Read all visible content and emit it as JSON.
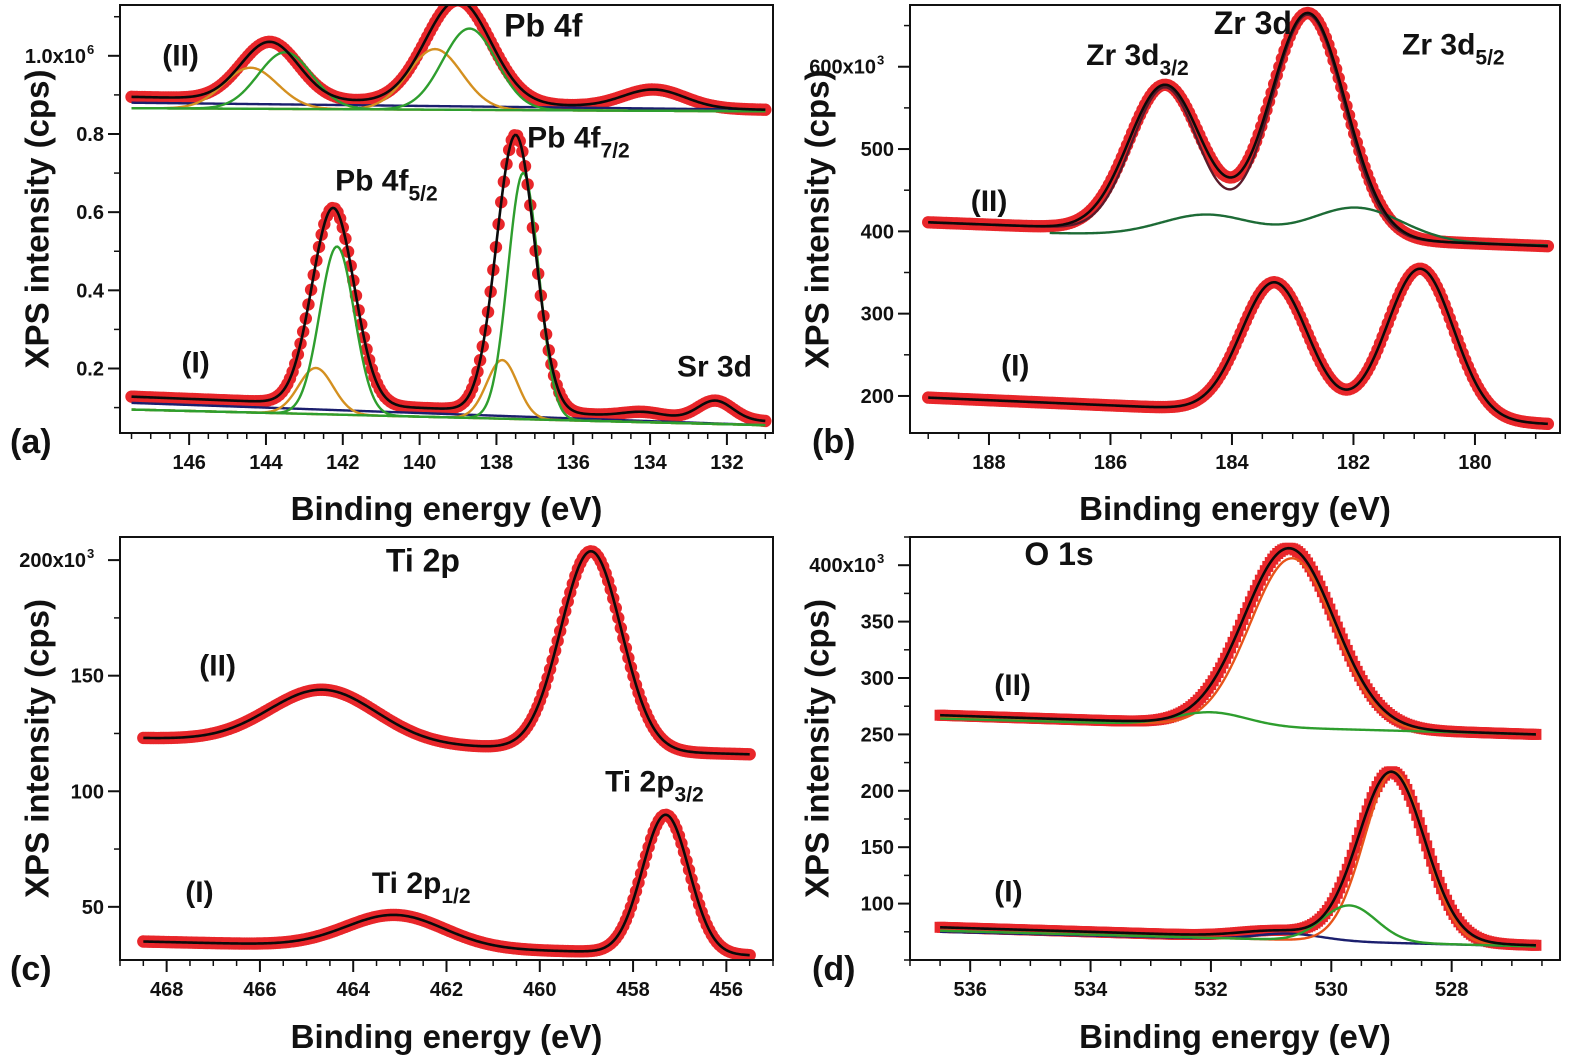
{
  "colors": {
    "data_points": "#e8262a",
    "envelope_fit": "#0a0a0a",
    "background": "#1b1f6e",
    "component_green": "#2e9e2e",
    "component_orange": "#d49020",
    "component_orange_red": "#e8541a",
    "component_darkgreen": "#1d6b36",
    "component_maroon": "#5a1a2a"
  },
  "chart_data": [
    {
      "id": "a",
      "panel_label": "(a)",
      "type": "line",
      "title": "Pb 4f",
      "xlabel": "Binding energy (eV)",
      "ylabel": "XPS intensity (cps)",
      "xlim": [
        147.8,
        130.8
      ],
      "ylim": [
        0.035,
        1.13
      ],
      "x_ticks": [
        146,
        144,
        142,
        140,
        138,
        136,
        134,
        132
      ],
      "x_tick_labels": [
        "146",
        "144",
        "142",
        "140",
        "138",
        "136",
        "134",
        "132"
      ],
      "y_ticks": [
        0.2,
        0.4,
        0.6,
        0.8,
        1.0
      ],
      "y_tick_labels": [
        "0.2",
        "0.4",
        "0.6",
        "0.8",
        "1.0x10"
      ],
      "y_exponent": "6",
      "annotations": [
        {
          "text": "(II)",
          "x": 146.7,
          "y": 0.975
        },
        {
          "text": "(I)",
          "x": 146.2,
          "y": 0.19
        },
        {
          "text": "Pb 4f",
          "sub": "5/2",
          "x": 142.2,
          "y": 0.655
        },
        {
          "text": "Pb 4f",
          "sub": "7/2",
          "x": 137.2,
          "y": 0.765
        },
        {
          "text": "Sr 3d",
          "x": 133.3,
          "y": 0.18
        }
      ],
      "title_pos": {
        "x": 137.8,
        "y": 1.05
      },
      "series": [
        {
          "name": "(II) data",
          "role": "data",
          "baseline": [
            147.5,
            0.895,
            131,
            0.862
          ],
          "peaks": [
            [
              143.9,
              0.148,
              0.75
            ],
            [
              139.0,
              0.264,
              0.85
            ],
            [
              133.9,
              0.046,
              0.8
            ]
          ]
        },
        {
          "name": "(II) fit",
          "role": "fit",
          "baseline": [
            147.5,
            0.895,
            131,
            0.862
          ],
          "peaks": [
            [
              143.9,
              0.148,
              0.75
            ],
            [
              139.0,
              0.264,
              0.85
            ],
            [
              133.9,
              0.046,
              0.8
            ]
          ]
        },
        {
          "name": "(II) orange 1",
          "role": "orange",
          "baseline": [
            147.5,
            0.866,
            131,
            0.858
          ],
          "peaks": [
            [
              144.4,
              0.105,
              0.7
            ]
          ]
        },
        {
          "name": "(II) green 1",
          "role": "green",
          "baseline": [
            147.5,
            0.866,
            131,
            0.858
          ],
          "peaks": [
            [
              143.5,
              0.145,
              0.7
            ]
          ]
        },
        {
          "name": "(II) orange 2",
          "role": "orange",
          "baseline": [
            147.5,
            0.866,
            131,
            0.858
          ],
          "peaks": [
            [
              139.6,
              0.155,
              0.7
            ]
          ]
        },
        {
          "name": "(II) green 2",
          "role": "green",
          "baseline": [
            147.5,
            0.866,
            131,
            0.858
          ],
          "peaks": [
            [
              138.7,
              0.208,
              0.7
            ]
          ]
        },
        {
          "name": "(II) background",
          "role": "background",
          "baseline": [
            147.5,
            0.88,
            131,
            0.862
          ],
          "peaks": []
        },
        {
          "name": "(I) data",
          "role": "data",
          "baseline": [
            147.5,
            0.128,
            131,
            0.065
          ],
          "peaks": [
            [
              142.25,
              0.503,
              0.55
            ],
            [
              137.5,
              0.708,
              0.5
            ],
            [
              134.2,
              0.012,
              0.5
            ],
            [
              132.3,
              0.048,
              0.45
            ]
          ]
        },
        {
          "name": "(I) fit",
          "role": "fit",
          "baseline": [
            147.5,
            0.128,
            131,
            0.065
          ],
          "peaks": [
            [
              142.25,
              0.503,
              0.55
            ],
            [
              137.5,
              0.708,
              0.5
            ],
            [
              134.2,
              0.012,
              0.5
            ],
            [
              132.3,
              0.048,
              0.45
            ]
          ]
        },
        {
          "name": "(I) orange 1",
          "role": "orange",
          "baseline": [
            147.5,
            0.095,
            131,
            0.055
          ],
          "peaks": [
            [
              142.7,
              0.118,
              0.45
            ]
          ]
        },
        {
          "name": "(I) green 1",
          "role": "green",
          "baseline": [
            147.5,
            0.095,
            131,
            0.055
          ],
          "peaks": [
            [
              142.15,
              0.43,
              0.45
            ]
          ]
        },
        {
          "name": "(I) orange 2",
          "role": "orange",
          "baseline": [
            147.5,
            0.095,
            131,
            0.055
          ],
          "peaks": [
            [
              137.85,
              0.15,
              0.4
            ]
          ]
        },
        {
          "name": "(I) green 2",
          "role": "green",
          "baseline": [
            147.5,
            0.095,
            131,
            0.055
          ],
          "peaks": [
            [
              137.3,
              0.63,
              0.4
            ]
          ]
        },
        {
          "name": "(I) background",
          "role": "background",
          "baseline": [
            147.5,
            0.112,
            131,
            0.055
          ],
          "peaks": []
        }
      ]
    },
    {
      "id": "b",
      "panel_label": "(b)",
      "type": "line",
      "title": "Zr 3d",
      "xlabel": "Binding energy (eV)",
      "ylabel": "XPS intensity (cps)",
      "xlim": [
        189.3,
        178.6
      ],
      "ylim": [
        155,
        675
      ],
      "x_ticks": [
        188,
        186,
        184,
        182,
        180
      ],
      "x_tick_labels": [
        "188",
        "186",
        "184",
        "182",
        "180"
      ],
      "y_ticks": [
        200,
        300,
        400,
        500,
        600
      ],
      "y_tick_labels": [
        "200",
        "300",
        "400",
        "500",
        "600x10"
      ],
      "y_exponent": "3",
      "annotations": [
        {
          "text": "(II)",
          "x": 188.3,
          "y": 425
        },
        {
          "text": "(I)",
          "x": 187.8,
          "y": 225
        },
        {
          "text": "Zr 3d",
          "sub": "3/2",
          "x": 186.4,
          "y": 602
        },
        {
          "text": "Zr 3d",
          "sub": "5/2",
          "x": 181.2,
          "y": 615
        }
      ],
      "title_pos": {
        "x": 184.3,
        "y": 640
      },
      "series": [
        {
          "name": "(II) data",
          "role": "data",
          "baseline": [
            189,
            411,
            178.8,
            382
          ],
          "peaks": [
            [
              185.1,
              178,
              0.6
            ],
            [
              182.75,
              272,
              0.62
            ]
          ]
        },
        {
          "name": "(II) fit",
          "role": "fit",
          "baseline": [
            189,
            411,
            178.8,
            382
          ],
          "peaks": [
            [
              185.1,
              178,
              0.6
            ],
            [
              182.75,
              272,
              0.62
            ]
          ]
        },
        {
          "name": "(II) maroon",
          "role": "maroon",
          "baseline": [
            189,
            411,
            178.8,
            382
          ],
          "peaks": [
            [
              185.1,
              175,
              0.55
            ],
            [
              182.75,
              270,
              0.6
            ]
          ]
        },
        {
          "name": "(II) darkgreen",
          "role": "darkgreen",
          "baseline": [
            187,
            398,
            178.8,
            383
          ],
          "peaks": [
            [
              184.4,
              27,
              0.75
            ],
            [
              181.95,
              40,
              0.75
            ]
          ]
        },
        {
          "name": "(I) data",
          "role": "data",
          "baseline": [
            189,
            198,
            178.8,
            166
          ],
          "peaks": [
            [
              183.3,
              158,
              0.55
            ],
            [
              180.9,
              182,
              0.55
            ]
          ]
        },
        {
          "name": "(I) fit",
          "role": "fit",
          "baseline": [
            189,
            198,
            178.8,
            166
          ],
          "peaks": [
            [
              183.3,
              158,
              0.55
            ],
            [
              180.9,
              182,
              0.55
            ]
          ]
        }
      ]
    },
    {
      "id": "c",
      "panel_label": "(c)",
      "type": "line",
      "title": "Ti 2p",
      "xlabel": "Binding energy (eV)",
      "ylabel": "XPS intensity (cps)",
      "xlim": [
        469,
        455
      ],
      "ylim": [
        27,
        210
      ],
      "x_ticks": [
        468,
        466,
        464,
        462,
        460,
        458,
        456
      ],
      "x_tick_labels": [
        "468",
        "466",
        "464",
        "462",
        "460",
        "458",
        "456"
      ],
      "y_ticks": [
        50,
        100,
        150,
        200
      ],
      "y_tick_labels": [
        "50",
        "100",
        "150",
        "200x10"
      ],
      "y_exponent": "3",
      "annotations": [
        {
          "text": "(II)",
          "x": 467.3,
          "y": 150
        },
        {
          "text": "(I)",
          "x": 467.6,
          "y": 52
        },
        {
          "text": "Ti 2p",
          "sub": "1/2",
          "x": 463.6,
          "y": 56
        },
        {
          "text": "Ti 2p",
          "sub": "3/2",
          "x": 458.6,
          "y": 100
        }
      ],
      "title_pos": {
        "x": 463.3,
        "y": 195
      },
      "series": [
        {
          "name": "(II) data",
          "role": "data",
          "baseline": [
            468.5,
            123,
            455.5,
            116
          ],
          "peaks": [
            [
              464.65,
              23,
              1.15
            ],
            [
              458.9,
              86,
              0.65
            ]
          ]
        },
        {
          "name": "(II) fit",
          "role": "fit",
          "baseline": [
            468.5,
            123,
            455.5,
            116
          ],
          "peaks": [
            [
              464.65,
              23,
              1.15
            ],
            [
              458.9,
              86,
              0.65
            ]
          ]
        },
        {
          "name": "(I) data",
          "role": "data",
          "baseline": [
            468.5,
            35,
            455.5,
            29
          ],
          "peaks": [
            [
              463.1,
              14,
              1.05
            ],
            [
              457.3,
              60,
              0.5
            ]
          ]
        },
        {
          "name": "(I) fit",
          "role": "fit",
          "baseline": [
            468.5,
            35,
            455.5,
            29
          ],
          "peaks": [
            [
              463.1,
              14,
              1.05
            ],
            [
              457.3,
              60,
              0.5
            ]
          ]
        }
      ]
    },
    {
      "id": "d",
      "panel_label": "(d)",
      "type": "line",
      "title": "O 1s",
      "xlabel": "Binding energy (eV)",
      "ylabel": "XPS intensity (cps)",
      "xlim": [
        537,
        526.2
      ],
      "ylim": [
        50,
        425
      ],
      "x_ticks": [
        536,
        534,
        532,
        530,
        528
      ],
      "x_tick_labels": [
        "536",
        "534",
        "532",
        "530",
        "528"
      ],
      "y_ticks": [
        100,
        150,
        200,
        250,
        300,
        350,
        400
      ],
      "y_tick_labels": [
        "100",
        "150",
        "200",
        "250",
        "300",
        "350",
        "400x10"
      ],
      "y_exponent": "3",
      "annotations": [
        {
          "text": "(II)",
          "x": 535.6,
          "y": 285
        },
        {
          "text": "(I)",
          "x": 535.6,
          "y": 102
        }
      ],
      "title_pos": {
        "x": 535.1,
        "y": 400
      },
      "series": [
        {
          "name": "(II) data",
          "role": "data",
          "baseline": [
            536.5,
            267,
            526.6,
            250
          ],
          "peaks": [
            [
              530.7,
              158,
              0.75
            ]
          ]
        },
        {
          "name": "(II) fit",
          "role": "fit",
          "baseline": [
            536.5,
            267,
            526.6,
            250
          ],
          "peaks": [
            [
              530.7,
              158,
              0.75
            ]
          ]
        },
        {
          "name": "(II) orange-red",
          "role": "orange_red",
          "baseline": [
            536.5,
            265,
            526.6,
            250
          ],
          "peaks": [
            [
              530.65,
              150,
              0.7
            ]
          ]
        },
        {
          "name": "(II) green",
          "role": "green",
          "baseline": [
            536.5,
            264,
            526.6,
            250
          ],
          "peaks": [
            [
              532.0,
              12,
              0.6
            ]
          ]
        },
        {
          "name": "(I) data",
          "role": "data",
          "baseline": [
            536.5,
            79,
            526.6,
            63
          ],
          "peaks": [
            [
              529.0,
              150,
              0.55
            ],
            [
              530.9,
              6,
              0.6
            ]
          ]
        },
        {
          "name": "(I) fit",
          "role": "fit",
          "baseline": [
            536.5,
            79,
            526.6,
            63
          ],
          "peaks": [
            [
              529.0,
              150,
              0.55
            ],
            [
              530.9,
              6,
              0.6
            ]
          ]
        },
        {
          "name": "(I) orange-red",
          "role": "orange_red",
          "baseline": [
            536.5,
            76,
            526.6,
            62
          ],
          "peaks": [
            [
              528.95,
              152,
              0.5
            ]
          ]
        },
        {
          "name": "(I) green",
          "role": "green",
          "baseline": [
            536.5,
            76,
            526.6,
            62
          ],
          "peaks": [
            [
              529.7,
              32,
              0.45
            ]
          ]
        },
        {
          "name": "(I) background",
          "role": "background",
          "baseline": [
            536.5,
            75,
            526.6,
            62
          ],
          "peaks": [
            [
              530.7,
              6,
              0.55
            ]
          ]
        }
      ]
    }
  ]
}
